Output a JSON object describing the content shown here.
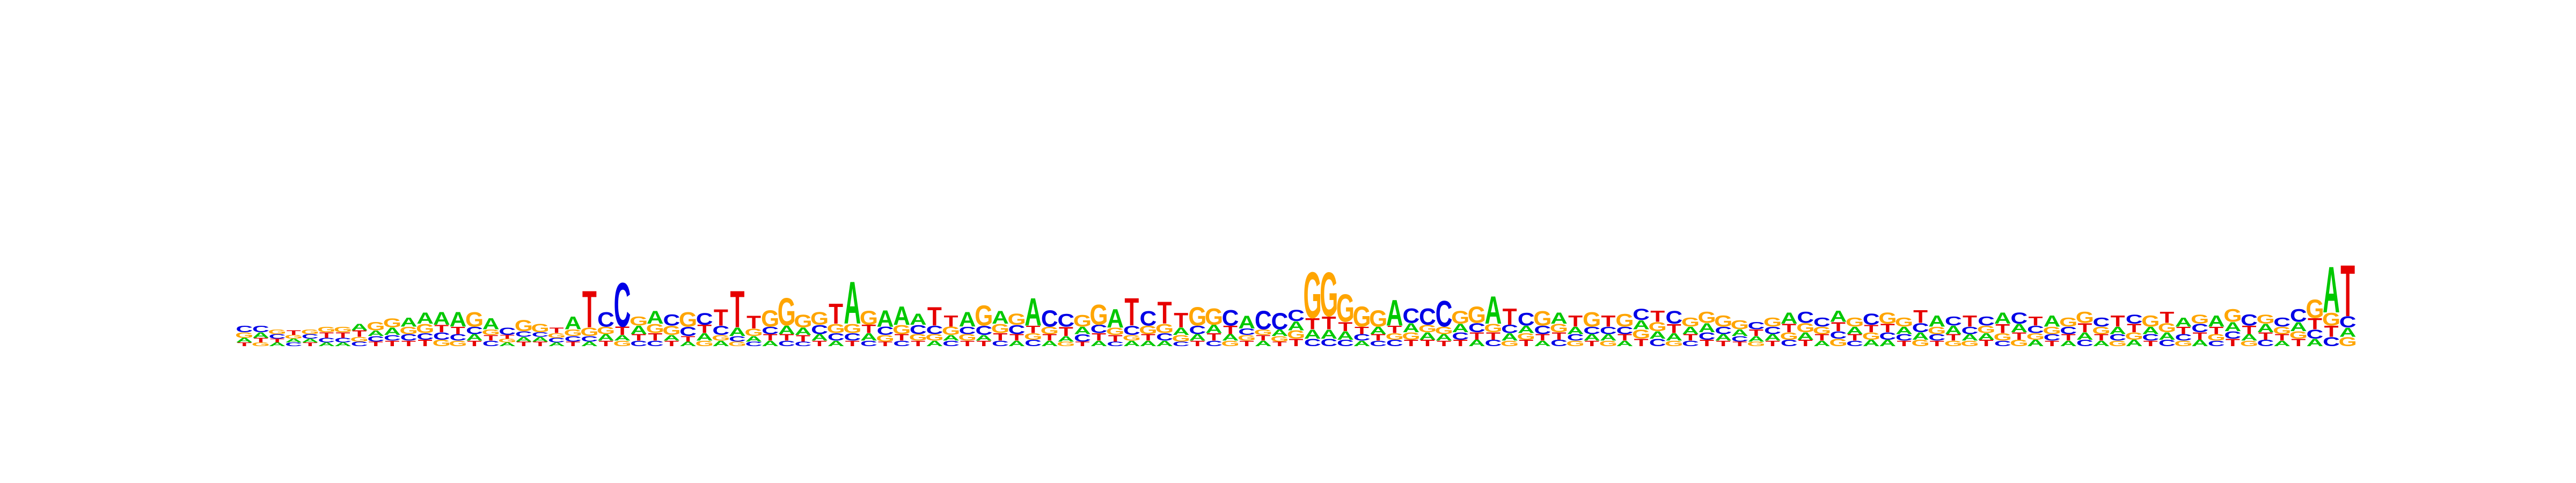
{
  "colors": {
    "A": "#00c800",
    "C": "#0000e6",
    "G": "#ffa500",
    "T": "#e60000"
  },
  "motif": {
    "bases": [
      "A",
      "C",
      "G",
      "T"
    ],
    "columns": [
      [
        "G",
        "T",
        "A",
        "C"
      ],
      [
        "A",
        "T",
        "G",
        "C"
      ],
      [
        "C",
        "A",
        "T",
        "G"
      ],
      [
        "T",
        "C",
        "A",
        "G"
      ],
      [
        "C",
        "T",
        "G",
        "A"
      ],
      [
        "T",
        "C",
        "A",
        "G"
      ],
      [
        "C",
        "T",
        "A",
        "G"
      ],
      [
        "T",
        "C",
        "G",
        "A"
      ],
      [
        "C",
        "T",
        "A",
        "G"
      ],
      [
        "A",
        "T",
        "C",
        "G"
      ],
      [
        "C",
        "T",
        "G",
        "A"
      ],
      [
        "T",
        "C",
        "G",
        "A"
      ],
      [
        "C",
        "G",
        "T",
        "A"
      ],
      [
        "G",
        "T",
        "C",
        "A"
      ],
      [
        "C",
        "T",
        "A",
        "G"
      ],
      [
        "C",
        "T",
        "G",
        "A"
      ],
      [
        "A",
        "G",
        "T",
        "C"
      ],
      [
        "T",
        "A",
        "C",
        "G"
      ],
      [
        "T",
        "A",
        "C",
        "G"
      ],
      [
        "C",
        "A",
        "G",
        "T"
      ],
      [
        "C",
        "T",
        "G",
        "A"
      ],
      [
        "A",
        "C",
        "G",
        "T"
      ],
      [
        "T",
        "A",
        "G",
        "C"
      ],
      [
        "G",
        "A",
        "T",
        "C"
      ],
      [
        "T",
        "C",
        "A",
        "G"
      ],
      [
        "C",
        "T",
        "G",
        "A"
      ],
      [
        "T",
        "A",
        "G",
        "C"
      ],
      [
        "A",
        "T",
        "C",
        "G"
      ],
      [
        "G",
        "A",
        "T",
        "C"
      ],
      [
        "A",
        "G",
        "C",
        "T"
      ],
      [
        "G",
        "C",
        "A",
        "T"
      ],
      [
        "C",
        "A",
        "G",
        "T"
      ],
      [
        "A",
        "T",
        "C",
        "G"
      ],
      [
        "T",
        "C",
        "A",
        "G"
      ],
      [
        "C",
        "T",
        "A",
        "G"
      ],
      [
        "T",
        "A",
        "C",
        "G"
      ],
      [
        "A",
        "C",
        "G",
        "T"
      ],
      [
        "T",
        "C",
        "G",
        "A"
      ],
      [
        "C",
        "A",
        "T",
        "G"
      ],
      [
        "T",
        "G",
        "C",
        "A"
      ],
      [
        "C",
        "T",
        "G",
        "A"
      ],
      [
        "G",
        "T",
        "C",
        "A"
      ],
      [
        "A",
        "G",
        "C",
        "T"
      ],
      [
        "C",
        "A",
        "G",
        "T"
      ],
      [
        "G",
        "T",
        "C",
        "A"
      ],
      [
        "T",
        "A",
        "C",
        "G"
      ],
      [
        "C",
        "T",
        "G",
        "A"
      ],
      [
        "A",
        "T",
        "C",
        "G"
      ],
      [
        "C",
        "G",
        "T",
        "A"
      ],
      [
        "A",
        "T",
        "G",
        "C"
      ],
      [
        "G",
        "A",
        "T",
        "C"
      ],
      [
        "T",
        "C",
        "A",
        "G"
      ],
      [
        "A",
        "T",
        "C",
        "G"
      ],
      [
        "C",
        "T",
        "G",
        "A"
      ],
      [
        "A",
        "G",
        "C",
        "T"
      ],
      [
        "T",
        "A",
        "G",
        "C"
      ],
      [
        "A",
        "C",
        "G",
        "T"
      ],
      [
        "C",
        "G",
        "A",
        "T"
      ],
      [
        "T",
        "A",
        "C",
        "G"
      ],
      [
        "C",
        "T",
        "A",
        "G"
      ],
      [
        "G",
        "A",
        "T",
        "C"
      ],
      [
        "T",
        "G",
        "C",
        "A"
      ],
      [
        "A",
        "T",
        "G",
        "C"
      ],
      [
        "T",
        "G",
        "A",
        "C"
      ],
      [
        "T",
        "G",
        "A",
        "C"
      ],
      [
        "C",
        "A",
        "T",
        "G"
      ],
      [
        "C",
        "A",
        "T",
        "G"
      ],
      [
        "C",
        "A",
        "T",
        "G"
      ],
      [
        "C",
        "A",
        "T",
        "G"
      ],
      [
        "T",
        "A",
        "C",
        "G"
      ],
      [
        "C",
        "G",
        "T",
        "A"
      ],
      [
        "T",
        "G",
        "A",
        "C"
      ],
      [
        "A",
        "T",
        "G",
        "C"
      ],
      [
        "T",
        "A",
        "G",
        "C"
      ],
      [
        "T",
        "C",
        "A",
        "G"
      ],
      [
        "A",
        "T",
        "C",
        "G"
      ],
      [
        "C",
        "T",
        "G",
        "A"
      ],
      [
        "G",
        "A",
        "C",
        "T"
      ],
      [
        "T",
        "G",
        "A",
        "C"
      ],
      [
        "A",
        "T",
        "C",
        "G"
      ],
      [
        "C",
        "T",
        "G",
        "A"
      ],
      [
        "G",
        "C",
        "A",
        "T"
      ],
      [
        "T",
        "A",
        "C",
        "G"
      ],
      [
        "G",
        "A",
        "C",
        "T"
      ],
      [
        "A",
        "T",
        "C",
        "G"
      ],
      [
        "T",
        "G",
        "A",
        "C"
      ],
      [
        "C",
        "G",
        "A",
        "T"
      ],
      [
        "G",
        "A",
        "T",
        "C"
      ],
      [
        "C",
        "T",
        "A",
        "G"
      ],
      [
        "T",
        "C",
        "A",
        "G"
      ],
      [
        "A",
        "T",
        "C",
        "G"
      ],
      [
        "T",
        "C",
        "A",
        "G"
      ],
      [
        "G",
        "A",
        "T",
        "C"
      ],
      [
        "T",
        "A",
        "C",
        "G"
      ],
      [
        "C",
        "G",
        "T",
        "A"
      ],
      [
        "T",
        "A",
        "G",
        "C"
      ],
      [
        "A",
        "T",
        "G",
        "C"
      ],
      [
        "G",
        "C",
        "T",
        "A"
      ],
      [
        "C",
        "T",
        "A",
        "G"
      ],
      [
        "G",
        "A",
        "T",
        "C"
      ],
      [
        "A",
        "C",
        "T",
        "G"
      ],
      [
        "T",
        "C",
        "A",
        "G"
      ],
      [
        "G",
        "A",
        "C",
        "T"
      ],
      [
        "T",
        "C",
        "G",
        "A"
      ],
      [
        "G",
        "T",
        "A",
        "C"
      ],
      [
        "C",
        "A",
        "G",
        "T"
      ],
      [
        "T",
        "G",
        "A",
        "C"
      ],
      [
        "C",
        "G",
        "T",
        "A"
      ],
      [
        "G",
        "T",
        "A",
        "C"
      ],
      [
        "A",
        "G",
        "C",
        "T"
      ],
      [
        "T",
        "C",
        "G",
        "A"
      ],
      [
        "A",
        "T",
        "C",
        "G"
      ],
      [
        "C",
        "A",
        "T",
        "G"
      ],
      [
        "T",
        "A",
        "G",
        "C"
      ],
      [
        "G",
        "C",
        "A",
        "T"
      ],
      [
        "A",
        "G",
        "T",
        "C"
      ],
      [
        "T",
        "C",
        "A",
        "G"
      ],
      [
        "C",
        "A",
        "G",
        "T"
      ],
      [
        "G",
        "T",
        "C",
        "A"
      ],
      [
        "A",
        "T",
        "C",
        "G"
      ],
      [
        "C",
        "G",
        "T",
        "A"
      ],
      [
        "T",
        "C",
        "A",
        "G"
      ],
      [
        "G",
        "A",
        "T",
        "C"
      ],
      [
        "C",
        "T",
        "A",
        "G"
      ],
      [
        "A",
        "T",
        "G",
        "C"
      ],
      [
        "T",
        "G",
        "A",
        "C"
      ],
      [
        "A",
        "C",
        "T",
        "G"
      ],
      [
        "C",
        "T",
        "G",
        "A"
      ],
      [
        "G",
        "A",
        "C",
        "T"
      ]
    ],
    "heights": [
      [
        0.06,
        0.04,
        0.05,
        0.07
      ],
      [
        0.06,
        0.05,
        0.04,
        0.07
      ],
      [
        0.05,
        0.04,
        0.04,
        0.05
      ],
      [
        0.05,
        0.04,
        0.04,
        0.04
      ],
      [
        0.05,
        0.04,
        0.05,
        0.04
      ],
      [
        0.06,
        0.05,
        0.04,
        0.06
      ],
      [
        0.05,
        0.06,
        0.04,
        0.06
      ],
      [
        0.07,
        0.05,
        0.05,
        0.07
      ],
      [
        0.06,
        0.05,
        0.06,
        0.09
      ],
      [
        0.08,
        0.06,
        0.06,
        0.1
      ],
      [
        0.07,
        0.06,
        0.08,
        0.1
      ],
      [
        0.07,
        0.07,
        0.1,
        0.12
      ],
      [
        0.08,
        0.07,
        0.08,
        0.14
      ],
      [
        0.06,
        0.08,
        0.07,
        0.16
      ],
      [
        0.08,
        0.06,
        0.07,
        0.16
      ],
      [
        0.06,
        0.06,
        0.06,
        0.12
      ],
      [
        0.04,
        0.04,
        0.04,
        0.08
      ],
      [
        0.05,
        0.05,
        0.06,
        0.12
      ],
      [
        0.05,
        0.05,
        0.05,
        0.09
      ],
      [
        0.05,
        0.04,
        0.05,
        0.06
      ],
      [
        0.06,
        0.05,
        0.07,
        0.14
      ],
      [
        0.05,
        0.06,
        0.09,
        0.4
      ],
      [
        0.06,
        0.07,
        0.08,
        0.16
      ],
      [
        0.06,
        0.06,
        0.09,
        0.48
      ],
      [
        0.07,
        0.06,
        0.09,
        0.1
      ],
      [
        0.06,
        0.08,
        0.1,
        0.14
      ],
      [
        0.06,
        0.06,
        0.1,
        0.12
      ],
      [
        0.05,
        0.06,
        0.1,
        0.16
      ],
      [
        0.06,
        0.08,
        0.09,
        0.13
      ],
      [
        0.06,
        0.06,
        0.1,
        0.18
      ],
      [
        0.05,
        0.06,
        0.09,
        0.4
      ],
      [
        0.05,
        0.06,
        0.08,
        0.14
      ],
      [
        0.06,
        0.07,
        0.08,
        0.18
      ],
      [
        0.07,
        0.06,
        0.09,
        0.3
      ],
      [
        0.05,
        0.07,
        0.08,
        0.14
      ],
      [
        0.06,
        0.07,
        0.1,
        0.14
      ],
      [
        0.06,
        0.08,
        0.1,
        0.22
      ],
      [
        0.06,
        0.08,
        0.1,
        0.46
      ],
      [
        0.06,
        0.08,
        0.09,
        0.15
      ],
      [
        0.05,
        0.07,
        0.09,
        0.18
      ],
      [
        0.06,
        0.07,
        0.1,
        0.2
      ],
      [
        0.07,
        0.06,
        0.1,
        0.12
      ],
      [
        0.06,
        0.07,
        0.09,
        0.2
      ],
      [
        0.06,
        0.06,
        0.09,
        0.12
      ],
      [
        0.07,
        0.06,
        0.08,
        0.16
      ],
      [
        0.06,
        0.06,
        0.1,
        0.22
      ],
      [
        0.06,
        0.08,
        0.1,
        0.14
      ],
      [
        0.06,
        0.07,
        0.1,
        0.12
      ],
      [
        0.07,
        0.07,
        0.08,
        0.3
      ],
      [
        0.06,
        0.07,
        0.08,
        0.18
      ],
      [
        0.05,
        0.06,
        0.1,
        0.14
      ],
      [
        0.05,
        0.08,
        0.08,
        0.13
      ],
      [
        0.06,
        0.08,
        0.09,
        0.22
      ],
      [
        0.05,
        0.07,
        0.08,
        0.2
      ],
      [
        0.06,
        0.06,
        0.1,
        0.3
      ],
      [
        0.07,
        0.06,
        0.09,
        0.16
      ],
      [
        0.06,
        0.08,
        0.1,
        0.24
      ],
      [
        0.05,
        0.07,
        0.08,
        0.16
      ],
      [
        0.06,
        0.07,
        0.09,
        0.2
      ],
      [
        0.06,
        0.08,
        0.09,
        0.18
      ],
      [
        0.06,
        0.07,
        0.09,
        0.17
      ],
      [
        0.06,
        0.06,
        0.07,
        0.14
      ],
      [
        0.06,
        0.06,
        0.06,
        0.2
      ],
      [
        0.05,
        0.06,
        0.07,
        0.18
      ],
      [
        0.08,
        0.09,
        0.1,
        0.12
      ],
      [
        0.08,
        0.1,
        0.12,
        0.5
      ],
      [
        0.08,
        0.1,
        0.14,
        0.48
      ],
      [
        0.07,
        0.09,
        0.1,
        0.3
      ],
      [
        0.07,
        0.06,
        0.08,
        0.22
      ],
      [
        0.07,
        0.08,
        0.06,
        0.18
      ],
      [
        0.07,
        0.07,
        0.08,
        0.28
      ],
      [
        0.07,
        0.08,
        0.1,
        0.16
      ],
      [
        0.08,
        0.07,
        0.08,
        0.18
      ],
      [
        0.06,
        0.07,
        0.08,
        0.28
      ],
      [
        0.07,
        0.08,
        0.09,
        0.14
      ],
      [
        0.07,
        0.08,
        0.1,
        0.18
      ],
      [
        0.07,
        0.08,
        0.09,
        0.3
      ],
      [
        0.06,
        0.08,
        0.09,
        0.18
      ],
      [
        0.07,
        0.07,
        0.08,
        0.14
      ],
      [
        0.06,
        0.07,
        0.09,
        0.16
      ],
      [
        0.07,
        0.08,
        0.09,
        0.12
      ],
      [
        0.06,
        0.07,
        0.08,
        0.12
      ],
      [
        0.06,
        0.07,
        0.08,
        0.16
      ],
      [
        0.06,
        0.07,
        0.08,
        0.12
      ],
      [
        0.06,
        0.07,
        0.08,
        0.14
      ],
      [
        0.08,
        0.1,
        0.1,
        0.12
      ],
      [
        0.08,
        0.1,
        0.08,
        0.12
      ],
      [
        0.06,
        0.08,
        0.1,
        0.14
      ],
      [
        0.06,
        0.07,
        0.08,
        0.1
      ],
      [
        0.07,
        0.08,
        0.1,
        0.12
      ],
      [
        0.07,
        0.06,
        0.08,
        0.12
      ],
      [
        0.05,
        0.06,
        0.07,
        0.1
      ],
      [
        0.05,
        0.06,
        0.07,
        0.08
      ],
      [
        0.06,
        0.07,
        0.08,
        0.1
      ],
      [
        0.07,
        0.08,
        0.09,
        0.12
      ],
      [
        0.07,
        0.08,
        0.1,
        0.12
      ],
      [
        0.06,
        0.07,
        0.08,
        0.1
      ],
      [
        0.08,
        0.08,
        0.1,
        0.12
      ],
      [
        0.06,
        0.07,
        0.08,
        0.1
      ],
      [
        0.08,
        0.07,
        0.08,
        0.12
      ],
      [
        0.07,
        0.08,
        0.09,
        0.12
      ],
      [
        0.06,
        0.07,
        0.08,
        0.1
      ],
      [
        0.07,
        0.08,
        0.1,
        0.14
      ],
      [
        0.06,
        0.07,
        0.08,
        0.12
      ],
      [
        0.06,
        0.07,
        0.09,
        0.1
      ],
      [
        0.08,
        0.07,
        0.06,
        0.12
      ],
      [
        0.07,
        0.08,
        0.07,
        0.1
      ],
      [
        0.06,
        0.08,
        0.1,
        0.12
      ],
      [
        0.07,
        0.08,
        0.09,
        0.12
      ],
      [
        0.07,
        0.07,
        0.08,
        0.1
      ],
      [
        0.06,
        0.07,
        0.08,
        0.12
      ],
      [
        0.06,
        0.07,
        0.08,
        0.1
      ],
      [
        0.07,
        0.08,
        0.1,
        0.12
      ],
      [
        0.07,
        0.06,
        0.08,
        0.1
      ],
      [
        0.06,
        0.07,
        0.08,
        0.12
      ],
      [
        0.07,
        0.08,
        0.09,
        0.1
      ],
      [
        0.06,
        0.07,
        0.08,
        0.12
      ],
      [
        0.07,
        0.08,
        0.1,
        0.12
      ],
      [
        0.06,
        0.08,
        0.07,
        0.1
      ],
      [
        0.07,
        0.08,
        0.09,
        0.1
      ],
      [
        0.06,
        0.07,
        0.08,
        0.12
      ],
      [
        0.08,
        0.08,
        0.1,
        0.14
      ],
      [
        0.06,
        0.07,
        0.09,
        0.12
      ],
      [
        0.07,
        0.08,
        0.09,
        0.1
      ],
      [
        0.06,
        0.07,
        0.08,
        0.1
      ],
      [
        0.08,
        0.08,
        0.1,
        0.14
      ],
      [
        0.08,
        0.1,
        0.12,
        0.2
      ],
      [
        0.1,
        0.12,
        0.14,
        0.5
      ],
      [
        0.1,
        0.1,
        0.12,
        0.56
      ]
    ]
  }
}
